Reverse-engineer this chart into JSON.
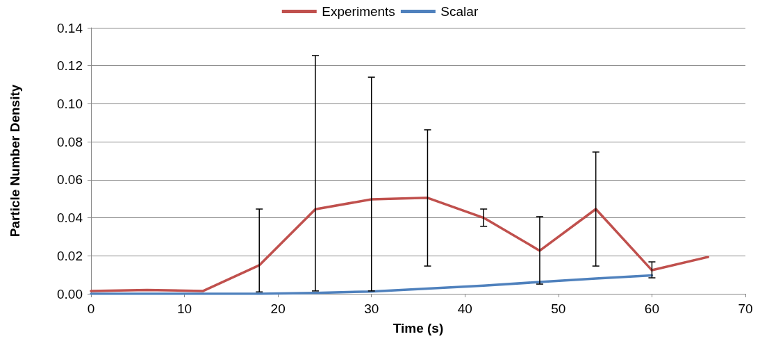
{
  "chart_data": {
    "type": "line",
    "xlabel": "Time (s)",
    "ylabel": "Particle Number Density",
    "xlim": [
      0,
      70
    ],
    "xticks": [
      0,
      10,
      20,
      30,
      40,
      50,
      60,
      70
    ],
    "ylim": [
      0,
      0.14
    ],
    "yticks": [
      {
        "value": 0,
        "label": "0.00"
      },
      {
        "value": 0.02,
        "label": "0.02"
      },
      {
        "value": 0.04,
        "label": "0.04"
      },
      {
        "value": 0.06,
        "label": "0.06"
      },
      {
        "value": 0.08,
        "label": "0.08"
      },
      {
        "value": 0.1,
        "label": "0.10"
      },
      {
        "value": 0.12,
        "label": "0.12"
      },
      {
        "value": 0.14,
        "label": "0.14"
      }
    ],
    "grid": "y",
    "legend": "top",
    "marker": "none",
    "line_style": "solid",
    "series": [
      {
        "name": "Experiments",
        "color": "#c0504d",
        "x": [
          0,
          6,
          12,
          18,
          24,
          30,
          36,
          42,
          48,
          54,
          60,
          66
        ],
        "values": [
          0.0015,
          0.002,
          0.0015,
          0.015,
          0.0445,
          0.0497,
          0.0505,
          0.04,
          0.0227,
          0.0446,
          0.0124,
          0.0194
        ],
        "errors": [
          null,
          null,
          null,
          [
            0.001,
            0.0446
          ],
          [
            0.0015,
            0.1254
          ],
          [
            0.0015,
            0.114
          ],
          [
            0.0146,
            0.0863
          ],
          [
            0.0355,
            0.0446
          ],
          [
            0.0051,
            0.0406
          ],
          [
            0.0146,
            0.0746
          ],
          [
            0.0084,
            0.0168
          ],
          null
        ]
      },
      {
        "name": "Scalar",
        "color": "#4f81bd",
        "x": [
          0,
          6,
          12,
          18,
          24,
          30,
          36,
          42,
          48,
          54,
          60
        ],
        "values": [
          0,
          0,
          0,
          0,
          0.0005,
          0.0012,
          0.0027,
          0.0043,
          0.0062,
          0.008,
          0.0097
        ]
      }
    ]
  }
}
